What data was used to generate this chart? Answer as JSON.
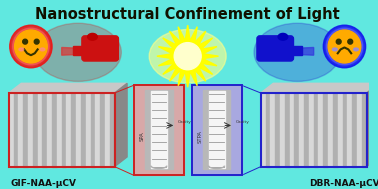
{
  "title": "Nanostructural Confinement of Light",
  "title_color": "#111100",
  "title_fontsize": 10.5,
  "bg_color": "#60e8e0",
  "left_label": "GIF-NAA-μCV",
  "right_label": "DBR-NAA-μCV",
  "left_panel_bg": "#d8a8a8",
  "right_panel_bg": "#a8a8e0",
  "left_box_edge": "#cc2222",
  "right_box_edge": "#2222cc",
  "stripe_light": "#d8d8d8",
  "stripe_dark": "#b0b0b0",
  "top_face": "#c8c8c8",
  "side_face": "#888888",
  "cavity_outer": "#c8c8c8",
  "cavity_inner": "#f0f0f0",
  "cavity_slot": "#909090",
  "left_side_label": "SPA",
  "right_side_label": "STPA",
  "cavity_label": "Cavity",
  "red_glove": "#cc1111",
  "blue_glove": "#1111cc",
  "flash_outer": "#ffff00",
  "flash_inner": "#ffffcc",
  "happy_bg": "#ee1111",
  "sad_bg": "#1111ee",
  "emoji_face": "#ffaa00",
  "label_color": "#111111",
  "label_fontsize": 6.5
}
